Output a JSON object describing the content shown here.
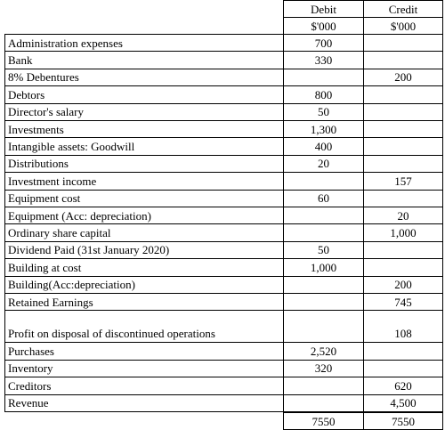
{
  "table": {
    "columns": [
      "Debit",
      "Credit"
    ],
    "units": [
      "$'000",
      "$'000"
    ],
    "rows": [
      {
        "label": "Administration expenses",
        "debit": "700"
      },
      {
        "label": "Bank",
        "debit": "330"
      },
      {
        "label": "8% Debentures",
        "credit": "200"
      },
      {
        "label": "Debtors",
        "debit": "800"
      },
      {
        "label": "Director's salary",
        "debit": "50"
      },
      {
        "label": "Investments",
        "debit": "1,300"
      },
      {
        "label": "Intangible assets: Goodwill",
        "debit": "400"
      },
      {
        "label": "Distributions",
        "debit": "20"
      },
      {
        "label": "Investment income",
        "credit": "157"
      },
      {
        "label": "Equipment cost",
        "debit": "60"
      },
      {
        "label": "Equipment (Acc: depreciation)",
        "credit": "20"
      },
      {
        "label": "Ordinary share capital",
        "credit": "1,000"
      },
      {
        "label": "Dividend Paid (31st January 2020)",
        "debit": "50"
      },
      {
        "label": "Building at cost",
        "debit": "1,000"
      },
      {
        "label": "Building(Acc:depreciation)",
        "credit": "200"
      },
      {
        "label": "Retained Earnings",
        "credit": "745"
      },
      {
        "label": "Profit on disposal of discontinued operations",
        "credit": "108"
      },
      {
        "label": "Purchases",
        "debit": "2,520"
      },
      {
        "label": "Inventory",
        "debit": "320"
      },
      {
        "label": "Creditors",
        "credit": "620"
      },
      {
        "label": "Revenue",
        "credit": "4,500"
      }
    ],
    "totals": {
      "debit": "7550",
      "credit": "7550"
    }
  }
}
